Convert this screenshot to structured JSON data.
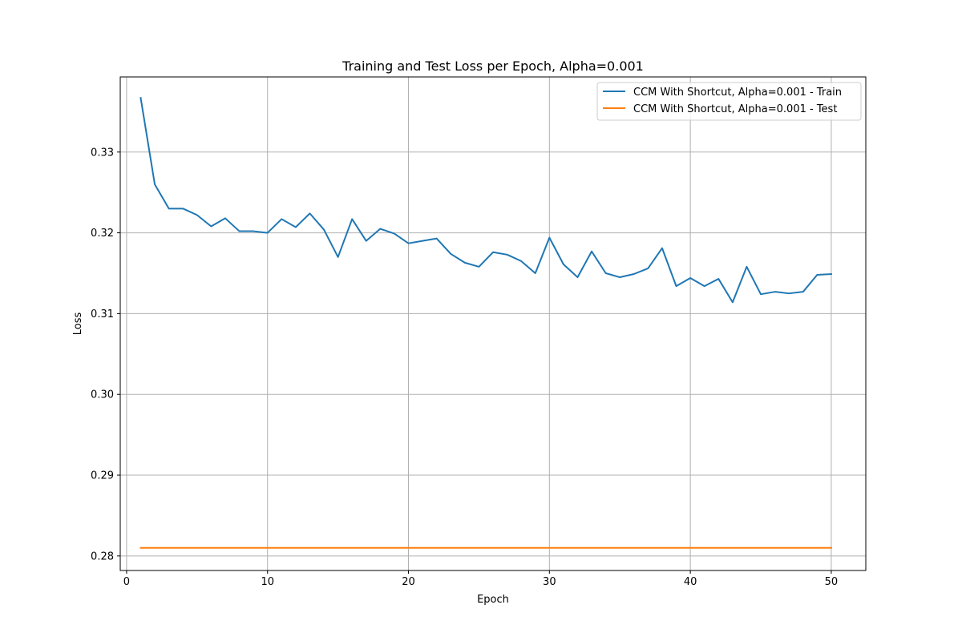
{
  "chart_data": {
    "type": "line",
    "title": "Training and Test Loss per Epoch, Alpha=0.001",
    "xlabel": "Epoch",
    "ylabel": "Loss",
    "xlim": [
      -0.45,
      52.45
    ],
    "ylim": [
      0.2782,
      0.3393
    ],
    "xticks": [
      0,
      10,
      20,
      30,
      40,
      50
    ],
    "yticks": [
      0.28,
      0.29,
      0.3,
      0.31,
      0.32,
      0.33
    ],
    "xtick_labels": [
      "0",
      "10",
      "20",
      "30",
      "40",
      "50"
    ],
    "ytick_labels": [
      "0.28",
      "0.29",
      "0.30",
      "0.31",
      "0.32",
      "0.33"
    ],
    "grid": true,
    "legend_position": "top-right",
    "x": [
      1,
      2,
      3,
      4,
      5,
      6,
      7,
      8,
      9,
      10,
      11,
      12,
      13,
      14,
      15,
      16,
      17,
      18,
      19,
      20,
      21,
      22,
      23,
      24,
      25,
      26,
      27,
      28,
      29,
      30,
      31,
      32,
      33,
      34,
      35,
      36,
      37,
      38,
      39,
      40,
      41,
      42,
      43,
      44,
      45,
      46,
      47,
      48,
      49,
      50
    ],
    "series": [
      {
        "name": "CCM With Shortcut, Alpha=0.001 - Train",
        "color": "#1f77b4",
        "values": [
          0.3367,
          0.326,
          0.323,
          0.323,
          0.3222,
          0.3208,
          0.3218,
          0.3202,
          0.3202,
          0.32,
          0.3217,
          0.3207,
          0.3224,
          0.3204,
          0.317,
          0.3217,
          0.319,
          0.3205,
          0.3199,
          0.3187,
          0.319,
          0.3193,
          0.3174,
          0.3163,
          0.3158,
          0.3176,
          0.3173,
          0.3165,
          0.315,
          0.3194,
          0.3161,
          0.3145,
          0.3177,
          0.315,
          0.3145,
          0.3149,
          0.3156,
          0.3181,
          0.3134,
          0.3144,
          0.3134,
          0.3143,
          0.3114,
          0.3158,
          0.3124,
          0.3127,
          0.3125,
          0.3127,
          0.3148,
          0.3149
        ]
      },
      {
        "name": "CCM With Shortcut, Alpha=0.001 - Test",
        "color": "#ff7f0e",
        "values": [
          0.281,
          0.281,
          0.281,
          0.281,
          0.281,
          0.281,
          0.281,
          0.281,
          0.281,
          0.281,
          0.281,
          0.281,
          0.281,
          0.281,
          0.281,
          0.281,
          0.281,
          0.281,
          0.281,
          0.281,
          0.281,
          0.281,
          0.281,
          0.281,
          0.281,
          0.281,
          0.281,
          0.281,
          0.281,
          0.281,
          0.281,
          0.281,
          0.281,
          0.281,
          0.281,
          0.281,
          0.281,
          0.281,
          0.281,
          0.281,
          0.281,
          0.281,
          0.281,
          0.281,
          0.281,
          0.281,
          0.281,
          0.281,
          0.281,
          0.281
        ]
      }
    ]
  }
}
